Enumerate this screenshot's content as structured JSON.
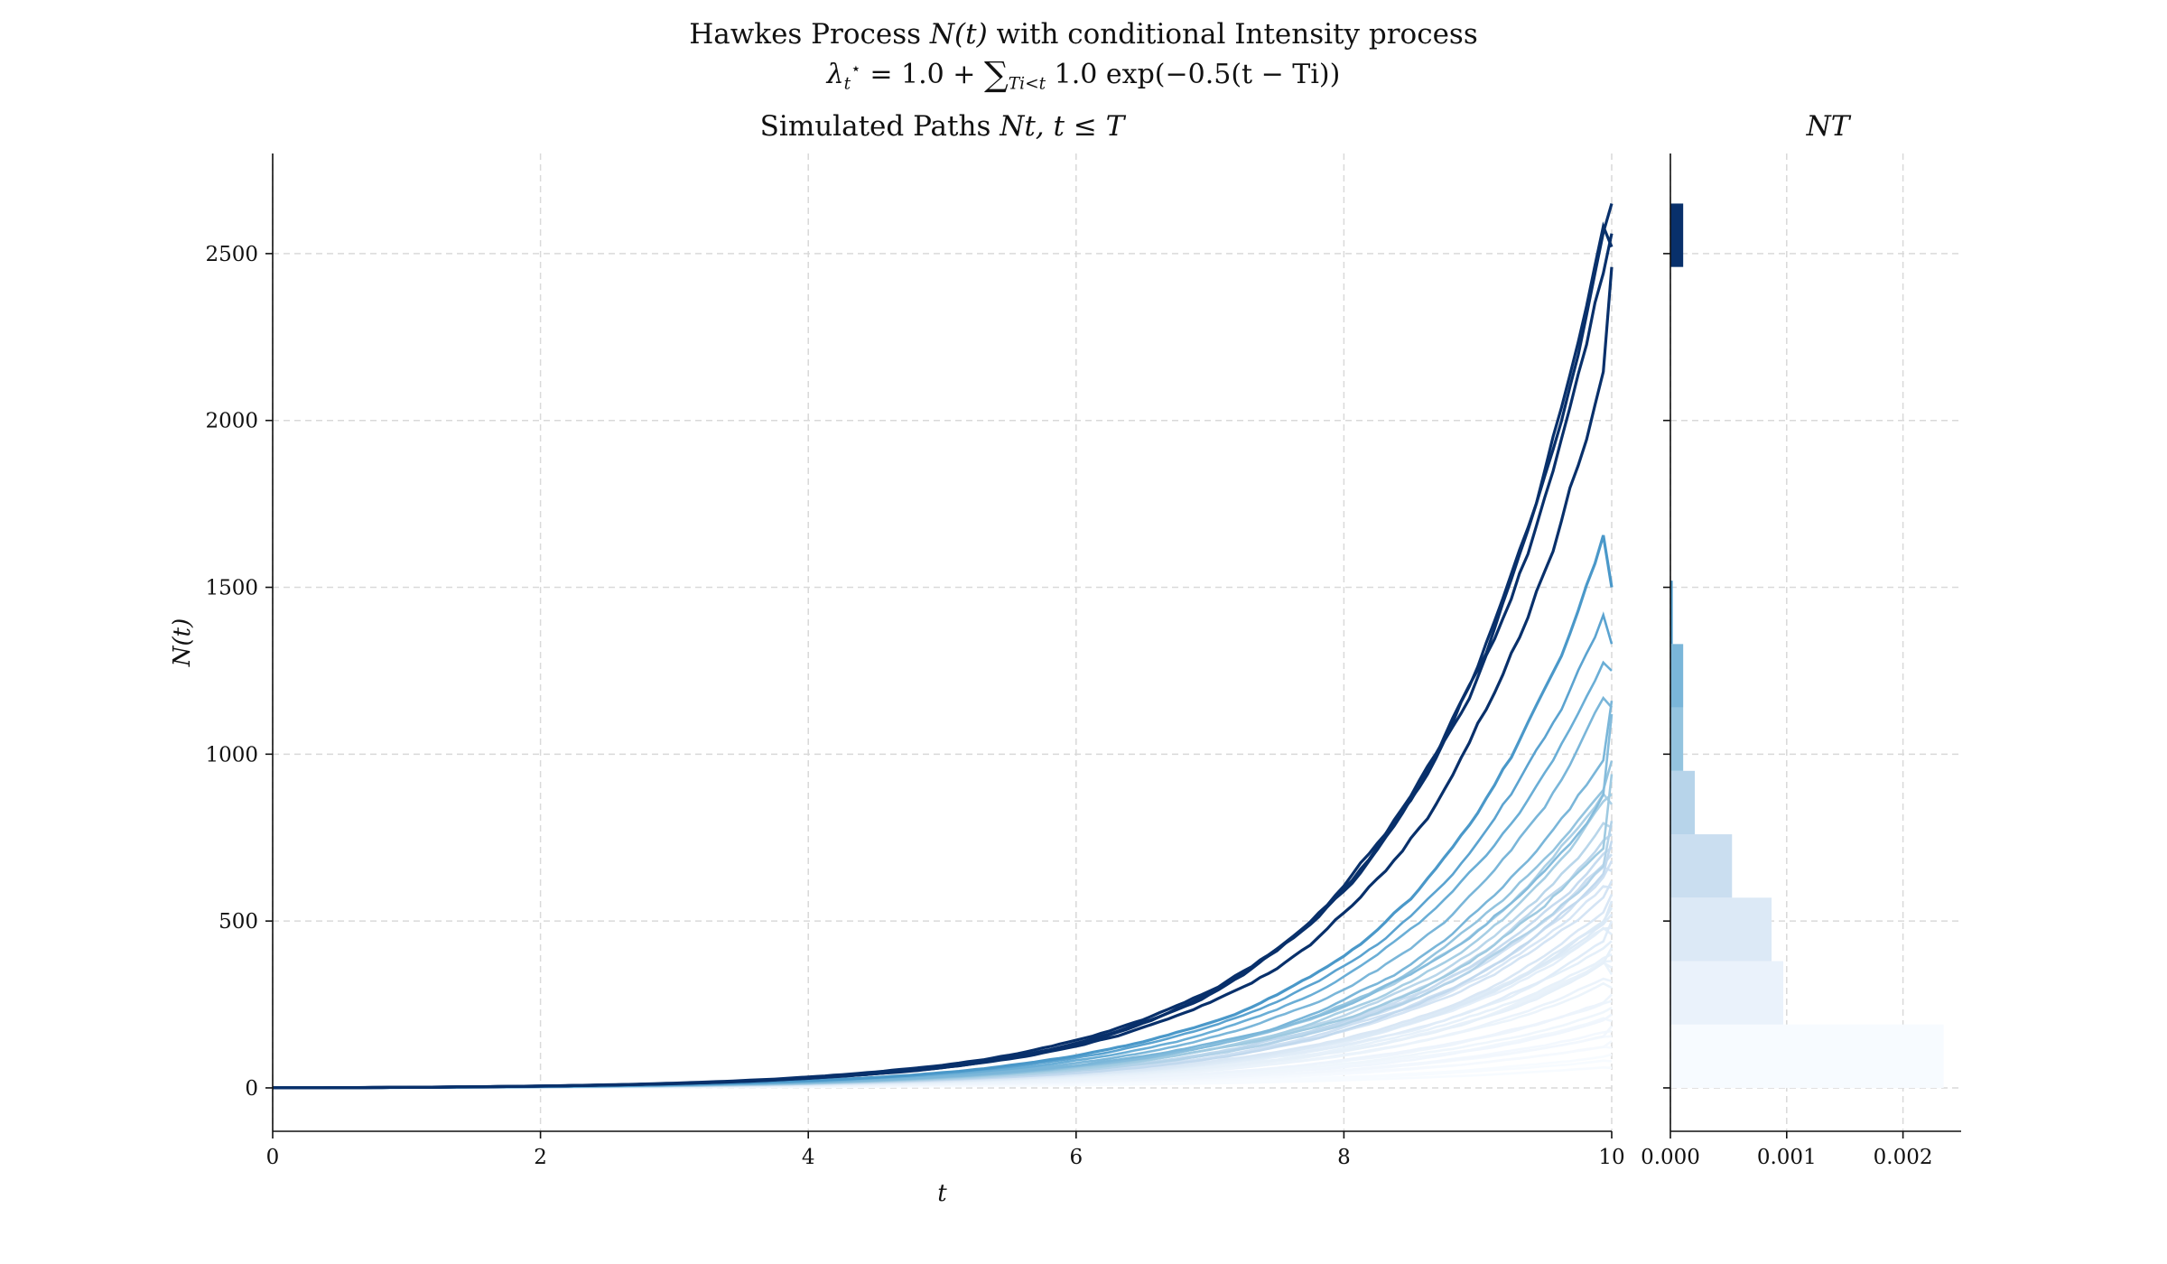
{
  "header": {
    "title_prefix": "Hawkes Process ",
    "title_math": "N(t)",
    "title_suffix": " with conditional Intensity process",
    "formula_lambda": "λ",
    "formula_lambda_sub": "t",
    "formula_lambda_sup": "⋆",
    "formula_mid": " = 1.0 + ",
    "formula_sum": "∑",
    "formula_sum_sub": "Ti<t",
    "formula_end": " 1.0 exp(−0.5(t − Ti))"
  },
  "chart_data": [
    {
      "type": "line",
      "title_prefix": "Simulated Paths ",
      "title_math": "Nt, t ≤ T",
      "xlabel": "t",
      "ylabel": "N(t)",
      "xlim": [
        0,
        10
      ],
      "ylim": [
        -130,
        2800
      ],
      "xticks": [
        0,
        2,
        4,
        6,
        8,
        10
      ],
      "yticks": [
        0,
        500,
        1000,
        1500,
        2000,
        2500
      ],
      "grid": true,
      "colormap": "Blues",
      "paths": [
        {
          "N_T": 2650,
          "color": "#08306b"
        },
        {
          "N_T": 2560,
          "color": "#08306b"
        },
        {
          "N_T": 2520,
          "color": "#08306b"
        },
        {
          "N_T": 2460,
          "color": "#08306b"
        },
        {
          "N_T": 1500,
          "color": "#4a98c9"
        },
        {
          "N_T": 1330,
          "color": "#5ba3d0"
        },
        {
          "N_T": 1250,
          "color": "#6aaed6"
        },
        {
          "N_T": 1160,
          "color": "#7ab6d9"
        },
        {
          "N_T": 1140,
          "color": "#7ab6d9"
        },
        {
          "N_T": 1120,
          "color": "#85bcdc"
        },
        {
          "N_T": 980,
          "color": "#94c4df"
        },
        {
          "N_T": 940,
          "color": "#9fcae1"
        },
        {
          "N_T": 880,
          "color": "#a6cee4"
        },
        {
          "N_T": 850,
          "color": "#abd0e6"
        },
        {
          "N_T": 800,
          "color": "#b2d2e8"
        },
        {
          "N_T": 780,
          "color": "#b9d6ea"
        },
        {
          "N_T": 760,
          "color": "#bdd7ec"
        },
        {
          "N_T": 740,
          "color": "#c2d9ee"
        },
        {
          "N_T": 720,
          "color": "#c6dbef"
        },
        {
          "N_T": 700,
          "color": "#cadef0"
        },
        {
          "N_T": 680,
          "color": "#cee0f2"
        },
        {
          "N_T": 650,
          "color": "#d1e2f3"
        },
        {
          "N_T": 620,
          "color": "#d4e4f4"
        },
        {
          "N_T": 600,
          "color": "#d7e6f5"
        },
        {
          "N_T": 580,
          "color": "#d9e7f5"
        },
        {
          "N_T": 560,
          "color": "#dbe9f6"
        },
        {
          "N_T": 540,
          "color": "#dceaf6"
        },
        {
          "N_T": 520,
          "color": "#deebf7"
        },
        {
          "N_T": 500,
          "color": "#e0ecf8"
        },
        {
          "N_T": 480,
          "color": "#e1edf8"
        },
        {
          "N_T": 460,
          "color": "#e3eef9"
        },
        {
          "N_T": 440,
          "color": "#e4eff9"
        },
        {
          "N_T": 420,
          "color": "#e6f0f9"
        },
        {
          "N_T": 400,
          "color": "#e7f1fa"
        },
        {
          "N_T": 380,
          "color": "#e8f1fa"
        },
        {
          "N_T": 360,
          "color": "#e9f2fa"
        },
        {
          "N_T": 340,
          "color": "#eaf3fb"
        },
        {
          "N_T": 320,
          "color": "#ebf3fb"
        },
        {
          "N_T": 300,
          "color": "#ecf4fb"
        },
        {
          "N_T": 280,
          "color": "#edf4fc"
        },
        {
          "N_T": 260,
          "color": "#eef5fc"
        },
        {
          "N_T": 240,
          "color": "#eff6fc"
        },
        {
          "N_T": 220,
          "color": "#f0f6fd"
        },
        {
          "N_T": 200,
          "color": "#f1f7fd"
        },
        {
          "N_T": 185,
          "color": "#f2f7fd"
        },
        {
          "N_T": 170,
          "color": "#f3f8fe"
        },
        {
          "N_T": 155,
          "color": "#f4f9fe"
        },
        {
          "N_T": 140,
          "color": "#f5f9fe"
        },
        {
          "N_T": 120,
          "color": "#f6faff"
        },
        {
          "N_T": 100,
          "color": "#f7fbff"
        },
        {
          "N_T": 80,
          "color": "#f7fbff"
        },
        {
          "N_T": 60,
          "color": "#f7fbff"
        }
      ]
    },
    {
      "type": "bar",
      "orientation": "horizontal",
      "title": "NT",
      "xlim": [
        0,
        0.0025
      ],
      "xticks": [
        0,
        0.001,
        0.002
      ],
      "xtick_labels": [
        "0.000",
        "0.001",
        "0.002"
      ],
      "grid": true,
      "bins": [
        {
          "low": 0,
          "high": 190,
          "density": 0.00235,
          "color": "#f7fbff"
        },
        {
          "low": 190,
          "high": 380,
          "density": 0.00097,
          "color": "#eaf2fb"
        },
        {
          "low": 380,
          "high": 570,
          "density": 0.00087,
          "color": "#dce9f6"
        },
        {
          "low": 570,
          "high": 760,
          "density": 0.00053,
          "color": "#cadef0"
        },
        {
          "low": 760,
          "high": 950,
          "density": 0.00021,
          "color": "#b7d4ea"
        },
        {
          "low": 950,
          "high": 1140,
          "density": 0.00011,
          "color": "#94c4df"
        },
        {
          "low": 1140,
          "high": 1330,
          "density": 0.00011,
          "color": "#7ab6d9"
        },
        {
          "low": 1330,
          "high": 1520,
          "density": 2e-05,
          "color": "#4a98c9"
        },
        {
          "low": 2460,
          "high": 2650,
          "density": 0.00011,
          "color": "#08306b"
        }
      ]
    }
  ]
}
